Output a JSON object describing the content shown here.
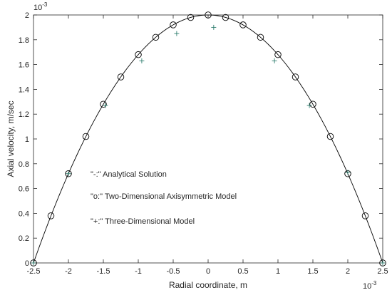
{
  "chart_data": {
    "type": "line",
    "xlabel": "Radial coordinate, m",
    "ylabel": "Axial velocity, m/sec",
    "xlim": [
      -2.5,
      2.5
    ],
    "ylim": [
      0,
      2
    ],
    "x_exponent_base": "10",
    "x_exponent": "-3",
    "y_exponent_base": "10",
    "y_exponent": "-3",
    "x_ticks": [
      "-2.5",
      "-2",
      "-1.5",
      "-1",
      "-0.5",
      "0",
      "0.5",
      "1",
      "1.5",
      "2",
      "2.5"
    ],
    "y_ticks": [
      "0",
      "0.2",
      "0.4",
      "0.6",
      "0.8",
      "1",
      "1.2",
      "1.4",
      "1.6",
      "1.8",
      "2"
    ],
    "grid": false,
    "annotations": [
      "\"-:\" Analytical Solution",
      "\"o:\" Two-Dimensional Axisymmetric Model",
      "\"+:\" Three-Dimensional Model"
    ],
    "series": [
      {
        "style": "line",
        "color": "#000000",
        "function": "2*(1-(x/2.5)^2)"
      },
      {
        "style": "circle",
        "color": "#000000",
        "x": [
          -2.5,
          -2.25,
          -2.0,
          -1.75,
          -1.5,
          -1.25,
          -1.0,
          -0.75,
          -0.5,
          -0.25,
          0.0,
          0.25,
          0.5,
          0.75,
          1.0,
          1.25,
          1.5,
          1.75,
          2.0,
          2.25,
          2.5
        ],
        "y": [
          0.0,
          0.38,
          0.72,
          1.02,
          1.28,
          1.5,
          1.68,
          1.82,
          1.92,
          1.98,
          2.0,
          1.98,
          1.92,
          1.82,
          1.68,
          1.5,
          1.28,
          1.02,
          0.72,
          0.38,
          0.0
        ]
      },
      {
        "style": "plus",
        "color": "#2e7d6e",
        "x": [
          -2.5,
          -2.0,
          -1.47,
          -0.95,
          -0.45,
          0.08,
          0.95,
          1.45,
          2.0,
          2.5
        ],
        "y": [
          0.0,
          0.72,
          1.27,
          1.63,
          1.85,
          1.9,
          1.63,
          1.27,
          0.73,
          0.0
        ]
      }
    ]
  }
}
